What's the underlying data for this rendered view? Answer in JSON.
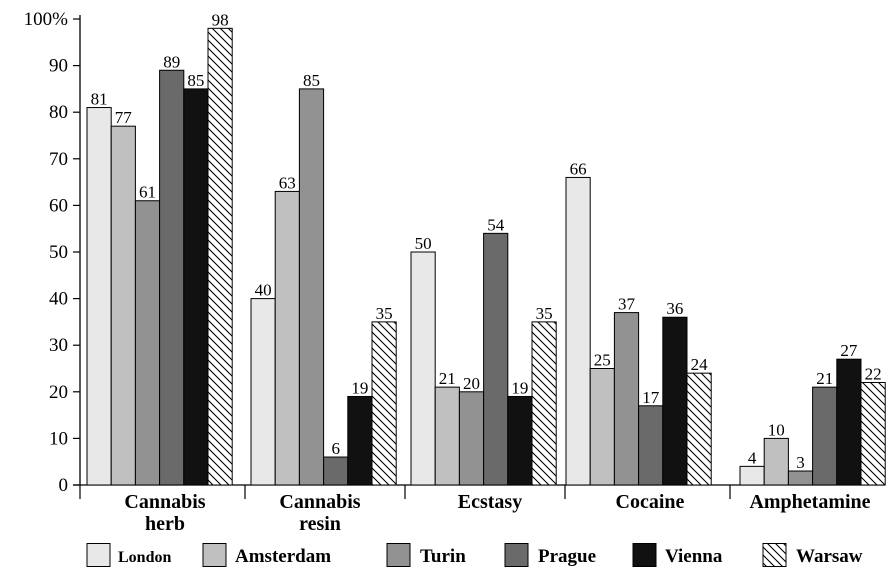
{
  "chart_data": {
    "type": "bar",
    "categories": [
      [
        "Cannabis",
        "herb"
      ],
      [
        "Cannabis",
        "resin"
      ],
      [
        "Ecstasy"
      ],
      [
        "Cocaine"
      ],
      [
        "Amphetamine"
      ]
    ],
    "series": [
      {
        "name": "London",
        "color": "#e8e8e8",
        "pattern": "solid",
        "values": [
          81,
          40,
          50,
          66,
          4
        ]
      },
      {
        "name": "Amsterdam",
        "color": "#c0c0c0",
        "pattern": "solid",
        "values": [
          77,
          63,
          21,
          25,
          10
        ]
      },
      {
        "name": "Turin",
        "color": "#929292",
        "pattern": "solid",
        "values": [
          61,
          85,
          20,
          37,
          3
        ]
      },
      {
        "name": "Prague",
        "color": "#6a6a6a",
        "pattern": "solid",
        "values": [
          89,
          6,
          54,
          17,
          21
        ]
      },
      {
        "name": "Vienna",
        "color": "#111111",
        "pattern": "solid",
        "values": [
          85,
          19,
          19,
          36,
          27
        ]
      },
      {
        "name": "Warsaw",
        "color": "#ffffff",
        "pattern": "hatch",
        "values": [
          98,
          35,
          35,
          24,
          22
        ]
      }
    ],
    "data_labels": [
      [
        "81",
        "77",
        "61",
        "89",
        "85",
        "98"
      ],
      [
        "40",
        "63",
        "85",
        "6",
        "19",
        "35"
      ],
      [
        "50",
        "21",
        "20",
        "54",
        "19",
        "35"
      ],
      [
        "66",
        "25",
        "37",
        "17",
        "36",
        "24"
      ],
      [
        "4",
        "10",
        "3",
        "21",
        "27",
        "22"
      ]
    ],
    "yticks": [
      "0",
      "10",
      "20",
      "30",
      "40",
      "50",
      "60",
      "70",
      "80",
      "90",
      "100%"
    ],
    "ylim": [
      0,
      100
    ],
    "legend_position": "bottom",
    "grid": false
  }
}
